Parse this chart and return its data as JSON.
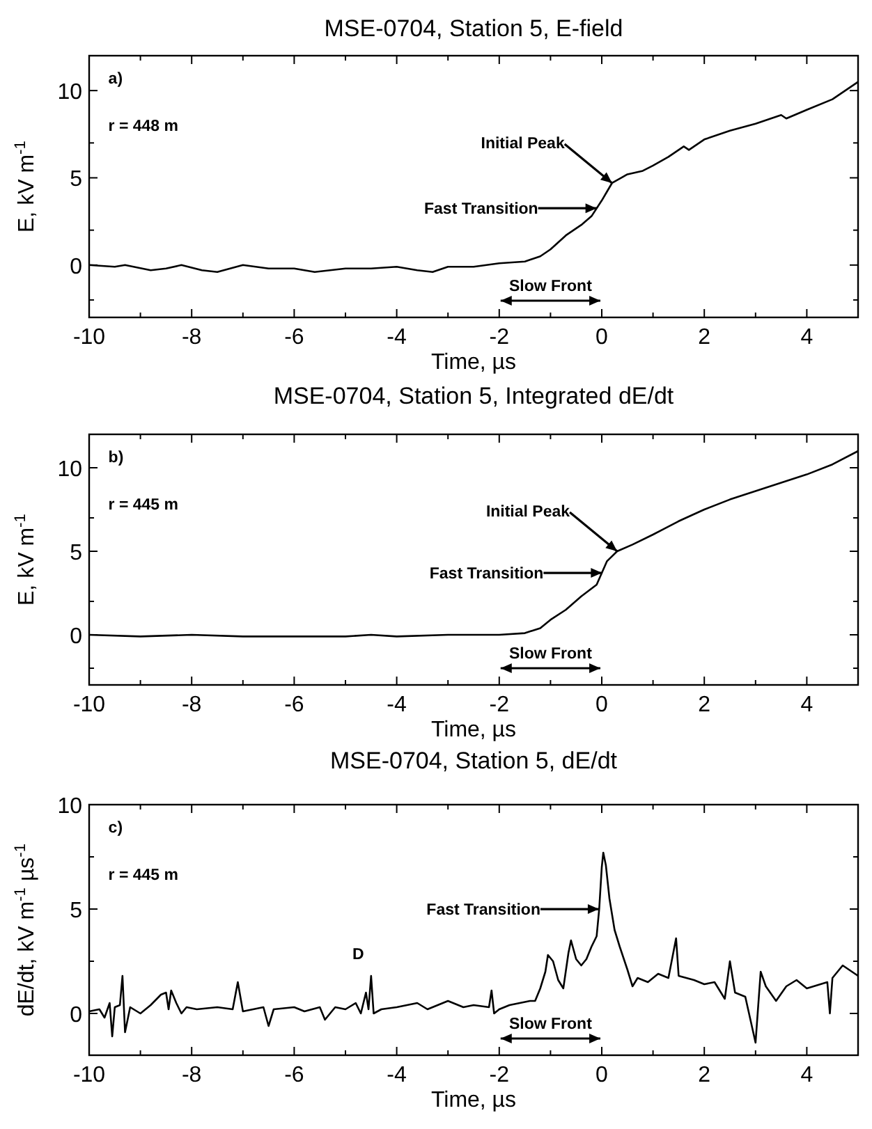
{
  "chart_data": [
    {
      "type": "line",
      "title": "MSE-0704, Station 5, E-field",
      "xlabel": "Time, µs",
      "ylabel": "E, kV m$^{-1}$",
      "xlim": [
        -10,
        5
      ],
      "ylim": [
        -3,
        12
      ],
      "xticks": [
        -10,
        {
          "value": -9,
          "label": null
        },
        -8,
        {
          "value": -7,
          "label": null
        },
        -6,
        {
          "value": -5,
          "label": null
        },
        -4,
        {
          "value": -3,
          "label": null
        },
        -2,
        {
          "value": -1,
          "label": null
        },
        0,
        {
          "value": 1,
          "label": null
        },
        2,
        {
          "value": 3,
          "label": null
        },
        4
      ],
      "yticks": [
        {
          "value": -2,
          "label": null
        },
        0,
        {
          "value": 2,
          "label": null
        },
        5,
        {
          "value": 7,
          "label": null
        },
        10
      ],
      "series": [
        {
          "color": "#000000",
          "x": [
            -10,
            -9.5,
            -9.3,
            -8.8,
            -8.5,
            -8.2,
            -7.8,
            -7.5,
            -7,
            -6.5,
            -6,
            -5.6,
            -5,
            -4.5,
            -4,
            -3.6,
            -3.3,
            -3,
            -2.5,
            -2,
            -1.5,
            -1.2,
            -1,
            -0.7,
            -0.4,
            -0.2,
            0,
            0.1,
            0.2,
            0.5,
            0.8,
            1,
            1.3,
            1.6,
            1.7,
            2,
            2.5,
            3,
            3.5,
            3.6,
            4,
            4.5,
            5
          ],
          "values": [
            0,
            -0.1,
            0,
            -0.3,
            -0.2,
            0,
            -0.3,
            -0.4,
            0,
            -0.2,
            -0.2,
            -0.4,
            -0.2,
            -0.2,
            -0.1,
            -0.3,
            -0.4,
            -0.1,
            -0.1,
            0.1,
            0.2,
            0.5,
            0.9,
            1.7,
            2.3,
            2.8,
            3.7,
            4.2,
            4.7,
            5.2,
            5.4,
            5.7,
            6.2,
            6.8,
            6.6,
            7.2,
            7.7,
            8.1,
            8.6,
            8.4,
            8.9,
            9.5,
            10.5
          ]
        }
      ],
      "annotations": [
        "a)",
        "r = 448 m",
        "Slow Front",
        "Fast Transition",
        {
          "text": "Initial Peak",
          "x": 0.2,
          "y": 4.7
        }
      ]
    },
    {
      "type": "line",
      "title": "MSE-0704, Station 5, Integrated dE/dt",
      "xlabel": "Time, µs",
      "ylabel": "E, kV m$^{-1}$",
      "xlim": [
        -10,
        5
      ],
      "ylim": [
        -3,
        12
      ],
      "xticks": [
        -10,
        {
          "value": -9,
          "label": null
        },
        -8,
        {
          "value": -7,
          "label": null
        },
        -6,
        {
          "value": -5,
          "label": null
        },
        -4,
        {
          "value": -3,
          "label": null
        },
        -2,
        {
          "value": -1,
          "label": null
        },
        0,
        {
          "value": 1,
          "label": null
        },
        2,
        {
          "value": 3,
          "label": null
        },
        4
      ],
      "yticks": [
        {
          "value": -2,
          "label": null
        },
        0,
        {
          "value": 2,
          "label": null
        },
        5,
        {
          "value": 7,
          "label": null
        },
        10
      ],
      "series": [
        {
          "color": "#000000",
          "x": [
            -10,
            -9,
            -8,
            -7,
            -6,
            -5,
            -4.5,
            -4,
            -3,
            -2,
            -1.5,
            -1.2,
            -1,
            -0.7,
            -0.4,
            -0.1,
            0,
            0.1,
            0.3,
            0.6,
            1,
            1.5,
            2,
            2.5,
            3,
            3.5,
            4,
            4.5,
            5
          ],
          "values": [
            0,
            -0.1,
            0,
            -0.1,
            -0.1,
            -0.1,
            0,
            -0.1,
            0,
            0,
            0.1,
            0.4,
            0.9,
            1.5,
            2.3,
            3,
            3.7,
            4.4,
            5,
            5.4,
            6,
            6.8,
            7.5,
            8.1,
            8.6,
            9.1,
            9.6,
            10.2,
            11
          ]
        }
      ],
      "annotations": [
        "b)",
        "r = 445 m",
        "Slow Front",
        "Fast Transition",
        {
          "text": "Initial Peak",
          "x": 0.3,
          "y": 5
        }
      ]
    },
    {
      "type": "line",
      "title": "MSE-0704, Station 5, dE/dt",
      "xlabel": "Time, µs",
      "ylabel": "dE/dt, kV m$^{-1}$ µs$^{-1}$",
      "xlim": [
        -10,
        5
      ],
      "ylim": [
        -2,
        10
      ],
      "xticks": [
        -10,
        {
          "value": -9,
          "label": null
        },
        -8,
        {
          "value": -7,
          "label": null
        },
        -6,
        {
          "value": -5,
          "label": null
        },
        -4,
        {
          "value": -3,
          "label": null
        },
        -2,
        {
          "value": -1,
          "label": null
        },
        0,
        {
          "value": 1,
          "label": null
        },
        2,
        {
          "value": 3,
          "label": null
        },
        4
      ],
      "yticks": [
        0,
        {
          "value": 2.5,
          "label": null
        },
        5,
        {
          "value": 7.5,
          "label": null
        },
        10
      ],
      "series": [
        {
          "color": "#000000",
          "x": [
            -10,
            -9.8,
            -9.7,
            -9.6,
            -9.55,
            -9.5,
            -9.4,
            -9.35,
            -9.3,
            -9.2,
            -9,
            -8.8,
            -8.6,
            -8.5,
            -8.45,
            -8.4,
            -8.3,
            -8.2,
            -8.1,
            -7.9,
            -7.5,
            -7.2,
            -7.1,
            -7,
            -6.8,
            -6.6,
            -6.5,
            -6.4,
            -6,
            -5.8,
            -5.5,
            -5.4,
            -5.2,
            -5,
            -4.8,
            -4.7,
            -4.6,
            -4.55,
            -4.5,
            -4.45,
            -4.3,
            -4,
            -3.6,
            -3.4,
            -3.2,
            -3,
            -2.7,
            -2.5,
            -2.2,
            -2.15,
            -2.1,
            -2,
            -1.8,
            -1.6,
            -1.4,
            -1.3,
            -1.2,
            -1.1,
            -1.05,
            -0.95,
            -0.85,
            -0.75,
            -0.65,
            -0.6,
            -0.5,
            -0.4,
            -0.3,
            -0.2,
            -0.1,
            -0.05,
            0,
            0.03,
            0.08,
            0.15,
            0.25,
            0.35,
            0.5,
            0.6,
            0.7,
            0.9,
            1.1,
            1.3,
            1.45,
            1.5,
            1.8,
            2,
            2.2,
            2.4,
            2.5,
            2.6,
            2.8,
            3,
            3.1,
            3.2,
            3.4,
            3.6,
            3.8,
            4,
            4.4,
            4.45,
            4.5,
            4.7,
            5
          ],
          "values": [
            0.1,
            0.2,
            -0.2,
            0.5,
            -1.1,
            0.3,
            0.4,
            1.8,
            -0.9,
            0.3,
            0,
            0.4,
            0.9,
            1,
            0.2,
            1.1,
            0.5,
            0,
            0.3,
            0.2,
            0.3,
            0.2,
            1.5,
            0.1,
            0.2,
            0.3,
            -0.6,
            0.2,
            0.3,
            0.1,
            0.3,
            -0.3,
            0.3,
            0.2,
            0.5,
            0,
            1,
            0.2,
            1.8,
            0,
            0.2,
            0.3,
            0.5,
            0.2,
            0.4,
            0.6,
            0.3,
            0.4,
            0.3,
            1.1,
            0,
            0.2,
            0.4,
            0.5,
            0.6,
            0.6,
            1.2,
            2,
            2.8,
            2.5,
            1.6,
            1.2,
            2.9,
            3.5,
            2.6,
            2.3,
            2.6,
            3.2,
            3.7,
            5,
            7,
            7.7,
            7.1,
            5.5,
            4,
            3.2,
            2.1,
            1.3,
            1.7,
            1.5,
            1.9,
            1.7,
            3.6,
            1.8,
            1.6,
            1.4,
            1.5,
            0.7,
            2.5,
            1,
            0.8,
            -1.4,
            2,
            1.3,
            0.6,
            1.3,
            1.6,
            1.2,
            1.5,
            0,
            1.7,
            2.3,
            1.8
          ]
        }
      ],
      "annotations": [
        "c)",
        "r = 445 m",
        "Slow Front",
        "D",
        "Fast Transition"
      ]
    }
  ]
}
